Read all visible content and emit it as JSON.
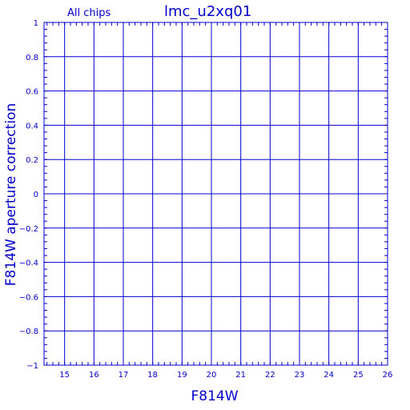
{
  "chart_data": {
    "type": "scatter",
    "title": "lmc_u2xq01",
    "subtitle": "All chips",
    "xlabel": "F814W",
    "ylabel": "F814W aperture correction",
    "xlim": [
      14.3,
      26
    ],
    "ylim": [
      -1,
      1
    ],
    "xticks": [
      15,
      16,
      17,
      18,
      19,
      20,
      21,
      22,
      23,
      24,
      25,
      26
    ],
    "xtick_labels": [
      "15",
      "16",
      "17",
      "18",
      "19",
      "20",
      "21",
      "22",
      "23",
      "24",
      "25",
      "26"
    ],
    "yticks": [
      -1,
      -0.8,
      -0.6,
      -0.4,
      -0.2,
      0,
      0.2,
      0.4,
      0.6,
      0.8,
      1
    ],
    "ytick_labels": [
      "−1",
      "−0.8",
      "−0.6",
      "−0.4",
      "−0.2",
      "0",
      "0.2",
      "0.4",
      "0.6",
      "0.8",
      "1"
    ],
    "grid": true,
    "series": [],
    "color": "#0000cc"
  }
}
